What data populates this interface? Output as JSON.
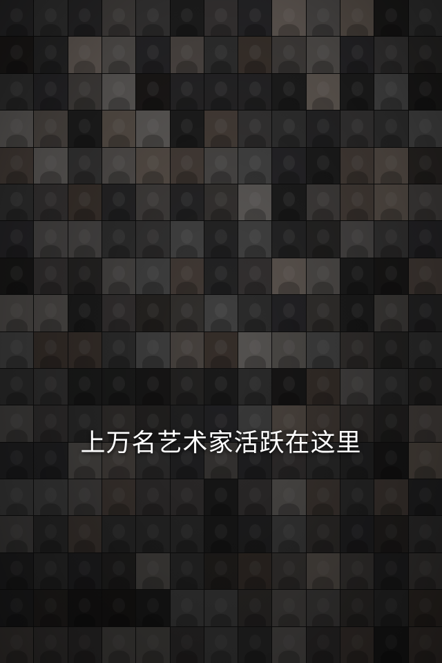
{
  "headline": "上万名艺术家活跃在这里",
  "grid": {
    "columns": 13,
    "rows": 18,
    "palette": [
      "#6f5f55",
      "#4a4a4a",
      "#8a7a6d",
      "#2e2e2e",
      "#5d4e44",
      "#3b3a3f",
      "#7a6f68",
      "#565050",
      "#9a8b80",
      "#403a36",
      "#6a6a6a",
      "#2b2624"
    ]
  },
  "colors": {
    "text": "#ffffff",
    "background": "#0b0b0b"
  }
}
